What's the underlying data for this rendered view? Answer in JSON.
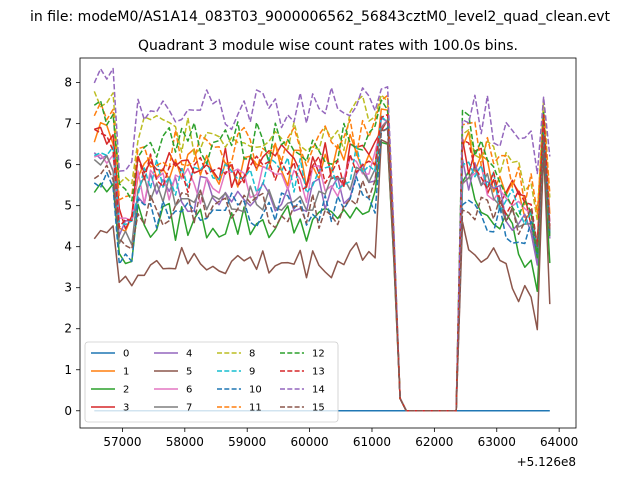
{
  "figure": {
    "suptitle": "in file: modeM0/AS1A14_083T03_9000006562_56843cztM0_level2_quad_clean.evt"
  },
  "chart_data": {
    "type": "line",
    "title": "Quadrant 3 module wise count rates with 100.0s bins.",
    "xlabel": "",
    "ylabel": "",
    "xlim": [
      56320,
      64270
    ],
    "ylim": [
      -0.42,
      8.6
    ],
    "xticks": [
      57000,
      58000,
      59000,
      60000,
      61000,
      62000,
      63000,
      64000
    ],
    "xtick_labels": [
      "57000",
      "58000",
      "59000",
      "60000",
      "61000",
      "62000",
      "63000",
      "64000"
    ],
    "yticks": [
      0,
      1,
      2,
      3,
      4,
      5,
      6,
      7,
      8
    ],
    "ytick_labels": [
      "0",
      "1",
      "2",
      "3",
      "4",
      "5",
      "6",
      "7",
      "8"
    ],
    "x_offset_label": "+5.126e8",
    "legend": {
      "location": "lower-left",
      "columns": 4
    },
    "x_range_sampled": {
      "start": 56550,
      "end": 63900,
      "step": 100
    },
    "gap": {
      "from": 61550,
      "to": 62350,
      "value": 0
    },
    "series": [
      {
        "name": "0",
        "color": "#1f77b4",
        "dashed": false,
        "flat": 0
      },
      {
        "name": "1",
        "color": "#ff7f0e",
        "dashed": false,
        "base": 6.0,
        "amp": 0.35,
        "drop": 4.6,
        "end": 4.8,
        "spike": 7.6,
        "post": 6.6
      },
      {
        "name": "2",
        "color": "#2ca02c",
        "dashed": false,
        "base": 4.6,
        "amp": 0.3,
        "drop": 3.8,
        "end": 3.6,
        "spike": 6.7,
        "post": 5.6
      },
      {
        "name": "3",
        "color": "#d62728",
        "dashed": false,
        "base": 6.0,
        "amp": 0.35,
        "drop": 4.7,
        "end": 4.4,
        "spike": 7.2,
        "post": 6.5
      },
      {
        "name": "4",
        "color": "#9467bd",
        "dashed": false,
        "base": 5.3,
        "amp": 0.3,
        "drop": 4.4,
        "end": 4.2,
        "spike": 7.4,
        "post": 5.9
      },
      {
        "name": "5",
        "color": "#8c564b",
        "dashed": false,
        "base": 3.6,
        "amp": 0.25,
        "drop": 3.1,
        "end": 2.6,
        "spike": 6.8,
        "post": 4.3
      },
      {
        "name": "6",
        "color": "#e377c2",
        "dashed": false,
        "base": 5.5,
        "amp": 0.3,
        "drop": 4.5,
        "end": 4.6,
        "spike": 7.3,
        "post": 6.0
      },
      {
        "name": "7",
        "color": "#7f7f7f",
        "dashed": false,
        "base": 5.3,
        "amp": 0.3,
        "drop": 4.2,
        "end": 4.3,
        "spike": 7.2,
        "post": 5.9
      },
      {
        "name": "8",
        "color": "#bcbd22",
        "dashed": true,
        "base": 6.8,
        "amp": 0.35,
        "drop": 5.5,
        "end": 5.2,
        "spike": 7.9,
        "post": 7.0
      },
      {
        "name": "9",
        "color": "#17becf",
        "dashed": true,
        "base": 5.7,
        "amp": 0.3,
        "drop": 4.4,
        "end": 4.5,
        "spike": 7.3,
        "post": 6.1
      },
      {
        "name": "10",
        "color": "#1f77b4",
        "dashed": true,
        "base": 4.9,
        "amp": 0.3,
        "drop": 3.7,
        "end": 4.3,
        "spike": 7.1,
        "post": 5.0
      },
      {
        "name": "11",
        "color": "#ff7f0e",
        "dashed": true,
        "base": 6.4,
        "amp": 0.35,
        "drop": 5.1,
        "end": 5.3,
        "spike": 7.8,
        "post": 6.8
      },
      {
        "name": "12",
        "color": "#2ca02c",
        "dashed": true,
        "base": 6.5,
        "amp": 0.35,
        "drop": 5.3,
        "end": 4.2,
        "spike": 7.7,
        "post": 7.0
      },
      {
        "name": "13",
        "color": "#d62728",
        "dashed": true,
        "base": 5.8,
        "amp": 0.3,
        "drop": 4.6,
        "end": 4.5,
        "spike": 7.5,
        "post": 6.2
      },
      {
        "name": "14",
        "color": "#9467bd",
        "dashed": true,
        "base": 7.4,
        "amp": 0.35,
        "drop": 5.8,
        "end": 6.2,
        "spike": 8.1,
        "post": 7.6
      },
      {
        "name": "15",
        "color": "#8c564b",
        "dashed": true,
        "base": 4.9,
        "amp": 0.3,
        "drop": 4.0,
        "end": 4.4,
        "spike": 7.0,
        "post": 5.2
      }
    ]
  }
}
